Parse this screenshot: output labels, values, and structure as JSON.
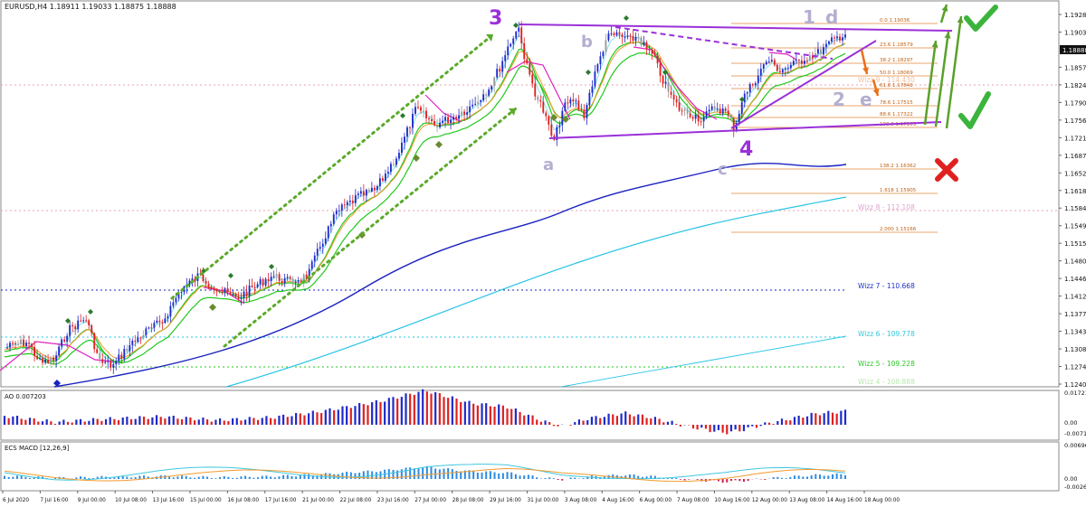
{
  "header": {
    "symbol_info": "EURUSD,H4  1.18911 1.19033 1.18875 1.18888"
  },
  "colors": {
    "bull": "#1f2ac9",
    "bear": "#e02020",
    "neutral": "#9a9a9a",
    "wave": "#9b30d9",
    "wave_light": "#b5aed0",
    "fib": "#e0863a",
    "ema_green": "#22c81e",
    "sma_blue": "#1a22c0",
    "sma_cyan": "#27c3e6",
    "magenta": "#e020c0",
    "orange": "#f29a2e",
    "check": "#3cb43c",
    "cross": "#e02020"
  },
  "chart_data": [
    {
      "type": "candlestick",
      "panel": "main",
      "price_axis": {
        "ticks": [
          "1.19280",
          "1.19036",
          "1.18888",
          "1.18579",
          "1.18240",
          "1.17900",
          "1.17560",
          "1.17210",
          "1.16870",
          "1.16520",
          "1.16180",
          "1.15840",
          "1.15490",
          "1.15150",
          "1.14800",
          "1.14460",
          "1.14120",
          "1.13770",
          "1.13430",
          "1.13080",
          "1.12740",
          "1.12400"
        ],
        "current_price": "1.18888"
      },
      "time_axis": {
        "ticks": [
          "6 Jul 2020",
          "7 Jul 16:00",
          "9 Jul 00:00",
          "10 Jul 08:00",
          "13 Jul 16:00",
          "15 Jul 00:00",
          "16 Jul 08:00",
          "17 Jul 16:00",
          "21 Jul 00:00",
          "22 Jul 08:00",
          "23 Jul 16:00",
          "27 Jul 00:00",
          "28 Jul 08:00",
          "29 Jul 16:00",
          "31 Jul 00:00",
          "3 Aug 08:00",
          "4 Aug 16:00",
          "6 Aug 00:00",
          "7 Aug 08:00",
          "10 Aug 16:00",
          "12 Aug 00:00",
          "13 Aug 08:00",
          "14 Aug 16:00",
          "18 Aug 00:00"
        ]
      },
      "elliott_labels": {
        "wave3": "3",
        "wave4": "4",
        "a": "a",
        "b": "b",
        "c": "c",
        "one": "1",
        "d": "d",
        "two": "2",
        "e": "e"
      },
      "fib_levels": [
        {
          "label": "0.0 1.19036"
        },
        {
          "label": "23.6 1.18579"
        },
        {
          "label": "38.2 1.18297"
        },
        {
          "label": "50.0 1.18069"
        },
        {
          "label": "61.8 1.17840"
        },
        {
          "label": "78.6 1.17515"
        },
        {
          "label": "88.6 1.17322"
        },
        {
          "label": "100.0 1.17103"
        },
        {
          "label": "138.2 1.16362"
        },
        {
          "label": "1.618 1.15905"
        },
        {
          "label": "2.000 1.15166"
        }
      ],
      "wizz_levels": [
        {
          "label": "Wizz 9 - 114.430"
        },
        {
          "label": "Wizz 8 - 112.108"
        },
        {
          "label": "Wizz 7 - 110.668"
        },
        {
          "label": "Wizz 6 - 109.778"
        },
        {
          "label": "Wizz 5 - 109.228"
        },
        {
          "label": "Wizz 4 - 108.888"
        }
      ]
    },
    {
      "type": "bar",
      "panel": "AO",
      "title": "AO 0.007203",
      "axis_ticks": [
        "0.017216",
        "0.00",
        "-0.007157"
      ]
    },
    {
      "type": "bar",
      "panel": "MACD",
      "title": "ECS MACD [12,26,9]",
      "axis_ticks": [
        "0.006966",
        "0.00",
        "-0.002690"
      ]
    }
  ]
}
